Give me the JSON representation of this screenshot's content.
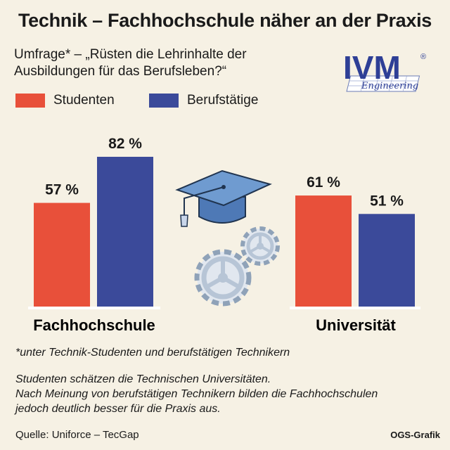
{
  "header": {
    "title": "Technik – Fachhochschule näher an der Praxis",
    "subtitle_line1": "Umfrage* – „Rüsten die Lehrinhalte der",
    "subtitle_line2": "Ausbildungen für das Berufsleben?“"
  },
  "logo": {
    "text": "IVM",
    "registered": "®",
    "tagline": "Engineering"
  },
  "colors": {
    "background": "#f6f1e4",
    "studenten": "#e8503a",
    "berufstaetige": "#3b4a9a"
  },
  "icons": [
    "graduation-cap-icon",
    "gears-icon"
  ],
  "chart_data": {
    "type": "bar",
    "categories": [
      "Fachhochschule",
      "Universität"
    ],
    "series": [
      {
        "name": "Studenten",
        "values": [
          57,
          61
        ],
        "labels": [
          "57 %",
          "61 %"
        ],
        "color": "#e8503a"
      },
      {
        "name": "Berufstätige",
        "values": [
          82,
          51
        ],
        "labels": [
          "82 %",
          "51 %"
        ],
        "color": "#3b4a9a"
      }
    ],
    "ylim": [
      0,
      100
    ],
    "legend": "top-left"
  },
  "footer": {
    "footnote": "*unter Technik-Studenten und berufstätigen Technikern",
    "note_line1": "Studenten schätzen die Technischen Universitäten.",
    "note_line2": "Nach Meinung von berufstätigen Technikern bilden die Fachhochschulen",
    "note_line3": "jedoch deutlich besser für die Praxis aus.",
    "source": "Quelle: Uniforce – TecGap",
    "credit": "OGS-Grafik"
  }
}
